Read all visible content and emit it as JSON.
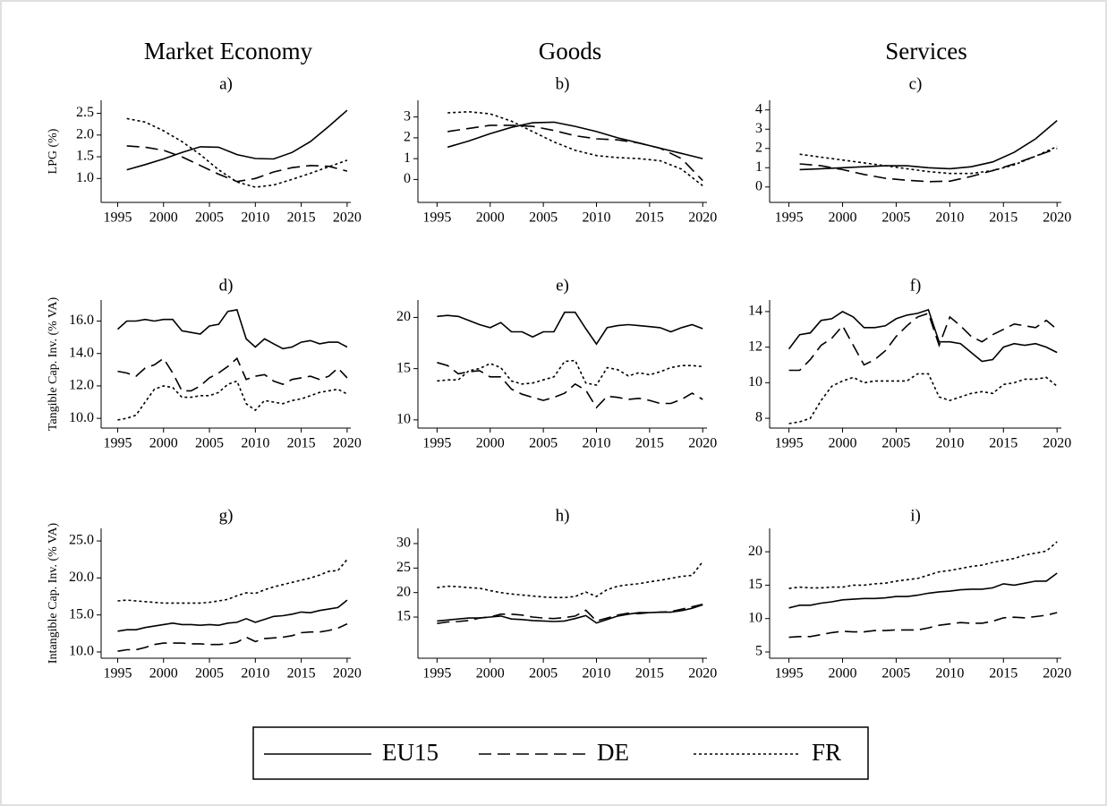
{
  "columns": [
    "Market Economy",
    "Goods",
    "Services"
  ],
  "legend": [
    {
      "name": "EU15",
      "dash": "solid",
      "color": "#000000"
    },
    {
      "name": "DE",
      "dash": "dashed",
      "color": "#000000"
    },
    {
      "name": "FR",
      "dash": "dotted",
      "color": "#000000"
    }
  ],
  "chart_data": [
    {
      "type": "line",
      "title": "a)",
      "ylabel": "LPG (%)",
      "x": [
        1996,
        1998,
        2000,
        2002,
        2004,
        2006,
        2008,
        2010,
        2012,
        2014,
        2016,
        2018,
        2020
      ],
      "xlim": [
        1993.2,
        2020.4
      ],
      "xticks": [
        1995,
        2000,
        2005,
        2010,
        2015,
        2020
      ],
      "ylim": [
        0.45,
        2.8
      ],
      "yticks": [
        {
          "value": 1,
          "label": "1.0"
        },
        1.5,
        {
          "value": 2,
          "label": "2.0"
        },
        2.5
      ],
      "series": [
        {
          "values": [
            1.2,
            1.32,
            1.45,
            1.6,
            1.73,
            1.72,
            1.55,
            1.46,
            1.45,
            1.6,
            1.85,
            2.2,
            2.57
          ]
        },
        {
          "values": [
            1.75,
            1.72,
            1.65,
            1.5,
            1.3,
            1.1,
            0.93,
            1.0,
            1.15,
            1.25,
            1.3,
            1.28,
            1.17
          ]
        },
        {
          "values": [
            2.38,
            2.3,
            2.1,
            1.85,
            1.55,
            1.2,
            0.92,
            0.8,
            0.85,
            0.98,
            1.12,
            1.27,
            1.42
          ]
        }
      ]
    },
    {
      "type": "line",
      "title": "b)",
      "x": [
        1996,
        1998,
        2000,
        2002,
        2004,
        2006,
        2008,
        2010,
        2012,
        2014,
        2016,
        2018,
        2020
      ],
      "xlim": [
        1993.2,
        2020.4
      ],
      "xticks": [
        1995,
        2000,
        2005,
        2010,
        2015,
        2020
      ],
      "ylim": [
        -1.1,
        3.8
      ],
      "yticks": [
        0,
        1,
        2,
        3
      ],
      "series": [
        {
          "values": [
            1.55,
            1.85,
            2.2,
            2.5,
            2.72,
            2.75,
            2.55,
            2.3,
            2.0,
            1.75,
            1.5,
            1.25,
            1.0
          ]
        },
        {
          "values": [
            2.3,
            2.45,
            2.6,
            2.6,
            2.55,
            2.35,
            2.1,
            1.95,
            1.9,
            1.75,
            1.5,
            1.0,
            -0.05
          ]
        },
        {
          "values": [
            3.2,
            3.25,
            3.15,
            2.8,
            2.3,
            1.8,
            1.4,
            1.15,
            1.05,
            1.0,
            0.9,
            0.5,
            -0.3
          ]
        }
      ]
    },
    {
      "type": "line",
      "title": "c)",
      "x": [
        1996,
        1998,
        2000,
        2002,
        2004,
        2006,
        2008,
        2010,
        2012,
        2014,
        2016,
        2018,
        2020
      ],
      "xlim": [
        1993.2,
        2020.4
      ],
      "xticks": [
        1995,
        2000,
        2005,
        2010,
        2015,
        2020
      ],
      "ylim": [
        -0.8,
        4.5
      ],
      "yticks": [
        0,
        1,
        2,
        3,
        4
      ],
      "series": [
        {
          "values": [
            0.9,
            0.95,
            1.0,
            1.05,
            1.1,
            1.1,
            1.0,
            0.95,
            1.05,
            1.3,
            1.8,
            2.5,
            3.45
          ]
        },
        {
          "values": [
            1.2,
            1.1,
            0.9,
            0.65,
            0.45,
            0.35,
            0.28,
            0.3,
            0.55,
            0.85,
            1.2,
            1.6,
            2.0
          ]
        },
        {
          "values": [
            1.7,
            1.55,
            1.4,
            1.25,
            1.1,
            0.95,
            0.8,
            0.7,
            0.7,
            0.85,
            1.15,
            1.6,
            2.1
          ]
        }
      ]
    },
    {
      "type": "line",
      "title": "d)",
      "ylabel": "Tangible Cap. Inv. (% VA)",
      "x": [
        1995,
        1996,
        1997,
        1998,
        1999,
        2000,
        2001,
        2002,
        2003,
        2004,
        2005,
        2006,
        2007,
        2008,
        2009,
        2010,
        2011,
        2012,
        2013,
        2014,
        2015,
        2016,
        2017,
        2018,
        2019,
        2020
      ],
      "xlim": [
        1993.2,
        2020.4
      ],
      "xticks": [
        1995,
        2000,
        2005,
        2010,
        2015,
        2020
      ],
      "ylim": [
        9.4,
        17.3
      ],
      "yticks": [
        {
          "value": 10,
          "label": "10.0"
        },
        {
          "value": 12,
          "label": "12.0"
        },
        {
          "value": 14,
          "label": "14.0"
        },
        {
          "value": 16,
          "label": "16.0"
        }
      ],
      "series": [
        {
          "values": [
            15.5,
            16.0,
            16.0,
            16.1,
            16.0,
            16.1,
            16.1,
            15.4,
            15.3,
            15.2,
            15.7,
            15.8,
            16.6,
            16.7,
            14.9,
            14.4,
            14.9,
            14.6,
            14.3,
            14.4,
            14.7,
            14.8,
            14.6,
            14.7,
            14.7,
            14.4
          ]
        },
        {
          "values": [
            12.9,
            12.8,
            12.6,
            13.1,
            13.3,
            13.7,
            12.8,
            11.7,
            11.7,
            12.0,
            12.5,
            12.8,
            13.2,
            13.7,
            12.4,
            12.6,
            12.7,
            12.3,
            12.1,
            12.4,
            12.5,
            12.6,
            12.4,
            12.6,
            13.1,
            12.5
          ]
        },
        {
          "values": [
            9.9,
            10.0,
            10.2,
            11.0,
            11.8,
            12.0,
            11.9,
            11.3,
            11.3,
            11.4,
            11.4,
            11.6,
            12.1,
            12.3,
            10.9,
            10.5,
            11.1,
            11.0,
            10.9,
            11.1,
            11.2,
            11.4,
            11.6,
            11.7,
            11.8,
            11.5
          ]
        }
      ]
    },
    {
      "type": "line",
      "title": "e)",
      "x": [
        1995,
        1996,
        1997,
        1998,
        1999,
        2000,
        2001,
        2002,
        2003,
        2004,
        2005,
        2006,
        2007,
        2008,
        2009,
        2010,
        2011,
        2012,
        2013,
        2014,
        2015,
        2016,
        2017,
        2018,
        2019,
        2020
      ],
      "xlim": [
        1993.2,
        2020.4
      ],
      "xticks": [
        1995,
        2000,
        2005,
        2010,
        2015,
        2020
      ],
      "ylim": [
        9.2,
        21.7
      ],
      "yticks": [
        10,
        15,
        20
      ],
      "series": [
        {
          "values": [
            20.1,
            20.2,
            20.1,
            19.7,
            19.3,
            19.0,
            19.5,
            18.6,
            18.6,
            18.1,
            18.6,
            18.6,
            20.5,
            20.5,
            18.9,
            17.4,
            19.0,
            19.2,
            19.3,
            19.2,
            19.1,
            19.0,
            18.6,
            19.0,
            19.3,
            18.9
          ]
        },
        {
          "values": [
            15.6,
            15.3,
            14.5,
            14.7,
            14.8,
            14.2,
            14.2,
            13.0,
            12.5,
            12.2,
            11.9,
            12.2,
            12.6,
            13.5,
            12.9,
            11.2,
            12.3,
            12.2,
            12.0,
            12.1,
            11.9,
            11.6,
            11.6,
            12.0,
            12.6,
            12.0
          ]
        },
        {
          "values": [
            13.8,
            13.9,
            13.9,
            14.8,
            15.0,
            15.5,
            15.1,
            13.8,
            13.5,
            13.6,
            13.9,
            14.2,
            15.7,
            15.8,
            13.6,
            13.4,
            15.1,
            14.9,
            14.3,
            14.6,
            14.4,
            14.7,
            15.1,
            15.3,
            15.3,
            15.2
          ]
        }
      ]
    },
    {
      "type": "line",
      "title": "f)",
      "x": [
        1995,
        1996,
        1997,
        1998,
        1999,
        2000,
        2001,
        2002,
        2003,
        2004,
        2005,
        2006,
        2007,
        2008,
        2009,
        2010,
        2011,
        2012,
        2013,
        2014,
        2015,
        2016,
        2017,
        2018,
        2019,
        2020
      ],
      "xlim": [
        1993.2,
        2020.4
      ],
      "xticks": [
        1995,
        2000,
        2005,
        2010,
        2015,
        2020
      ],
      "ylim": [
        7.45,
        14.65
      ],
      "yticks": [
        8,
        10,
        12,
        14
      ],
      "series": [
        {
          "values": [
            11.9,
            12.7,
            12.8,
            13.5,
            13.6,
            14.0,
            13.7,
            13.1,
            13.1,
            13.2,
            13.6,
            13.8,
            13.9,
            14.1,
            12.3,
            12.3,
            12.2,
            11.7,
            11.2,
            11.3,
            12.0,
            12.2,
            12.1,
            12.2,
            12.0,
            11.7
          ]
        },
        {
          "values": [
            10.7,
            10.7,
            11.3,
            12.1,
            12.5,
            13.2,
            12.1,
            11.0,
            11.3,
            11.8,
            12.6,
            13.2,
            13.7,
            13.9,
            12.1,
            13.7,
            13.2,
            12.6,
            12.3,
            12.7,
            13.0,
            13.3,
            13.2,
            13.1,
            13.5,
            13.0
          ]
        },
        {
          "values": [
            7.7,
            7.8,
            8.0,
            9.0,
            9.8,
            10.1,
            10.3,
            10.0,
            10.1,
            10.1,
            10.1,
            10.1,
            10.5,
            10.5,
            9.2,
            9.0,
            9.2,
            9.4,
            9.5,
            9.4,
            9.9,
            10.0,
            10.2,
            10.2,
            10.3,
            9.8
          ]
        }
      ]
    },
    {
      "type": "line",
      "title": "g)",
      "ylabel": "Intangible Cap. Inv. (% VA)",
      "x": [
        1995,
        1996,
        1997,
        1998,
        1999,
        2000,
        2001,
        2002,
        2003,
        2004,
        2005,
        2006,
        2007,
        2008,
        2009,
        2010,
        2011,
        2012,
        2013,
        2014,
        2015,
        2016,
        2017,
        2018,
        2019,
        2020
      ],
      "xlim": [
        1993.2,
        2020.4
      ],
      "xticks": [
        1995,
        2000,
        2005,
        2010,
        2015,
        2020
      ],
      "ylim": [
        9.15,
        26.7
      ],
      "yticks": [
        {
          "value": 10,
          "label": "10.0"
        },
        {
          "value": 15,
          "label": "15.0"
        },
        {
          "value": 20,
          "label": "20.0"
        },
        {
          "value": 25,
          "label": "25.0"
        }
      ],
      "series": [
        {
          "values": [
            12.8,
            13.0,
            13.0,
            13.3,
            13.5,
            13.7,
            13.9,
            13.7,
            13.7,
            13.6,
            13.7,
            13.6,
            13.9,
            14.0,
            14.5,
            14.0,
            14.4,
            14.8,
            14.9,
            15.1,
            15.4,
            15.3,
            15.6,
            15.8,
            16.0,
            17.0
          ]
        },
        {
          "values": [
            10.1,
            10.3,
            10.3,
            10.6,
            11.0,
            11.2,
            11.2,
            11.2,
            11.1,
            11.1,
            11.0,
            11.0,
            11.1,
            11.3,
            12.0,
            11.4,
            11.8,
            11.9,
            12.0,
            12.2,
            12.6,
            12.7,
            12.7,
            12.9,
            13.2,
            13.8
          ]
        },
        {
          "values": [
            16.9,
            17.0,
            16.9,
            16.8,
            16.7,
            16.6,
            16.6,
            16.6,
            16.6,
            16.6,
            16.7,
            16.9,
            17.1,
            17.6,
            18.0,
            17.9,
            18.4,
            18.8,
            19.1,
            19.4,
            19.7,
            20.0,
            20.4,
            20.9,
            21.0,
            22.5
          ]
        }
      ]
    },
    {
      "type": "line",
      "title": "h)",
      "x": [
        1995,
        1996,
        1997,
        1998,
        1999,
        2000,
        2001,
        2002,
        2003,
        2004,
        2005,
        2006,
        2007,
        2008,
        2009,
        2010,
        2011,
        2012,
        2013,
        2014,
        2015,
        2016,
        2017,
        2018,
        2019,
        2020
      ],
      "xlim": [
        1993.2,
        2020.4
      ],
      "xticks": [
        1995,
        2000,
        2005,
        2010,
        2015,
        2020
      ],
      "ylim": [
        6.6,
        33.1
      ],
      "yticks": [
        15,
        20,
        25,
        30
      ],
      "series": [
        {
          "values": [
            14.2,
            14.4,
            14.6,
            14.8,
            14.8,
            15.0,
            15.2,
            14.6,
            14.5,
            14.3,
            14.2,
            14.1,
            14.2,
            14.7,
            15.3,
            13.8,
            14.5,
            15.2,
            15.6,
            15.9,
            15.9,
            16.0,
            16.0,
            16.3,
            16.8,
            17.5
          ]
        },
        {
          "values": [
            13.7,
            14.0,
            14.1,
            14.3,
            14.8,
            15.0,
            15.6,
            15.6,
            15.4,
            15.0,
            14.8,
            14.7,
            14.9,
            15.2,
            16.4,
            14.2,
            14.8,
            15.4,
            15.8,
            15.7,
            15.9,
            16.0,
            16.1,
            16.6,
            17.1,
            17.6
          ]
        },
        {
          "values": [
            21.0,
            21.3,
            21.2,
            21.0,
            20.9,
            20.4,
            20.0,
            19.7,
            19.5,
            19.3,
            19.1,
            19.0,
            19.0,
            19.2,
            20.1,
            19.2,
            20.6,
            21.3,
            21.6,
            21.8,
            22.2,
            22.5,
            22.9,
            23.3,
            23.5,
            26.3
          ]
        }
      ]
    },
    {
      "type": "line",
      "title": "i)",
      "x": [
        1995,
        1996,
        1997,
        1998,
        1999,
        2000,
        2001,
        2002,
        2003,
        2004,
        2005,
        2006,
        2007,
        2008,
        2009,
        2010,
        2011,
        2012,
        2013,
        2014,
        2015,
        2016,
        2017,
        2018,
        2019,
        2020
      ],
      "xlim": [
        1993.2,
        2020.4
      ],
      "xticks": [
        1995,
        2000,
        2005,
        2010,
        2015,
        2020
      ],
      "ylim": [
        4.06,
        23.5
      ],
      "yticks": [
        5,
        10,
        15,
        20
      ],
      "series": [
        {
          "values": [
            11.6,
            12.0,
            12.0,
            12.3,
            12.5,
            12.8,
            12.9,
            13.0,
            13.0,
            13.1,
            13.3,
            13.3,
            13.5,
            13.8,
            14.0,
            14.1,
            14.3,
            14.4,
            14.4,
            14.6,
            15.2,
            15.0,
            15.3,
            15.6,
            15.6,
            16.8
          ]
        },
        {
          "values": [
            7.2,
            7.3,
            7.3,
            7.6,
            7.9,
            8.1,
            8.0,
            8.0,
            8.2,
            8.2,
            8.3,
            8.3,
            8.3,
            8.6,
            9.0,
            9.2,
            9.4,
            9.3,
            9.3,
            9.6,
            10.1,
            10.2,
            10.1,
            10.3,
            10.5,
            10.9
          ]
        },
        {
          "values": [
            14.5,
            14.7,
            14.6,
            14.6,
            14.7,
            14.7,
            15.0,
            15.0,
            15.2,
            15.3,
            15.6,
            15.8,
            16.0,
            16.5,
            17.0,
            17.2,
            17.5,
            17.8,
            18.0,
            18.4,
            18.7,
            19.0,
            19.5,
            19.8,
            20.1,
            21.5
          ]
        }
      ]
    }
  ]
}
